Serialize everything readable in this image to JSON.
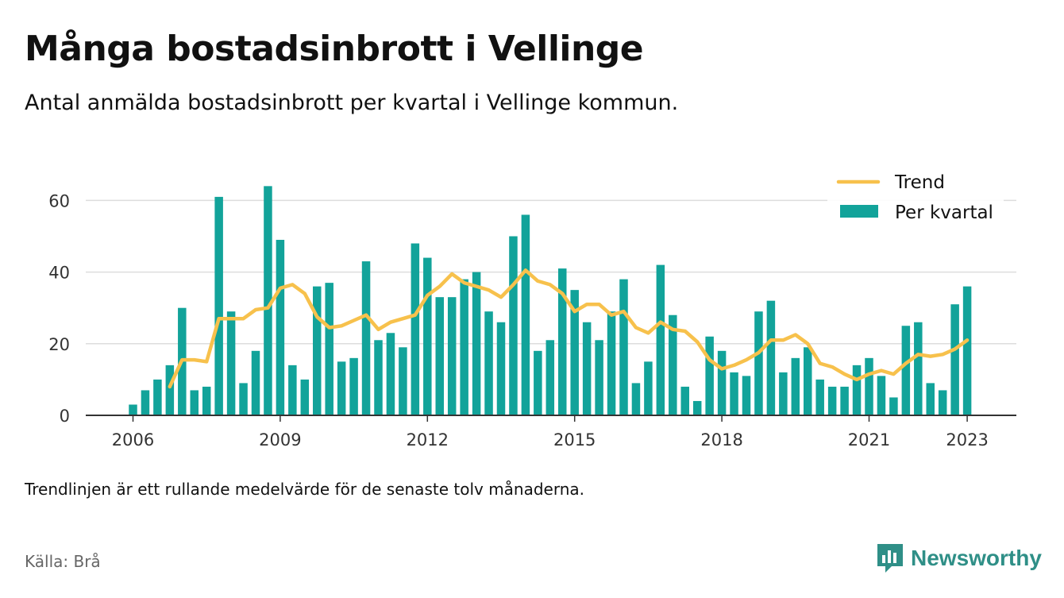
{
  "header": {
    "title": "Många bostadsinbrott i Vellinge",
    "subtitle": "Antal anmälda bostadsinbrott per kvartal i Vellinge kommun."
  },
  "footer": {
    "note": "Trendlinjen är ett rullande medelvärde för de senaste tolv månaderna.",
    "source": "Källa: Brå",
    "brand": "Newsworthy",
    "brand_icon": "bar-chart-logo-icon",
    "brand_color": "#2f8f87"
  },
  "chart_data": {
    "type": "bar",
    "ylim": [
      0,
      70
    ],
    "yticks": [
      "0",
      "20",
      "40",
      "60"
    ],
    "xticks": [
      "2006",
      "2009",
      "2012",
      "2015",
      "2018",
      "2021",
      "2023"
    ],
    "grid": true,
    "legend_position": "top-right",
    "x": [
      "2006-Q1",
      "2006-Q2",
      "2006-Q3",
      "2006-Q4",
      "2007-Q1",
      "2007-Q2",
      "2007-Q3",
      "2007-Q4",
      "2008-Q1",
      "2008-Q2",
      "2008-Q3",
      "2008-Q4",
      "2009-Q1",
      "2009-Q2",
      "2009-Q3",
      "2009-Q4",
      "2010-Q1",
      "2010-Q2",
      "2010-Q3",
      "2010-Q4",
      "2011-Q1",
      "2011-Q2",
      "2011-Q3",
      "2011-Q4",
      "2012-Q1",
      "2012-Q2",
      "2012-Q3",
      "2012-Q4",
      "2013-Q1",
      "2013-Q2",
      "2013-Q3",
      "2013-Q4",
      "2014-Q1",
      "2014-Q2",
      "2014-Q3",
      "2014-Q4",
      "2015-Q1",
      "2015-Q2",
      "2015-Q3",
      "2015-Q4",
      "2016-Q1",
      "2016-Q2",
      "2016-Q3",
      "2016-Q4",
      "2017-Q1",
      "2017-Q2",
      "2017-Q3",
      "2017-Q4",
      "2018-Q1",
      "2018-Q2",
      "2018-Q3",
      "2018-Q4",
      "2019-Q1",
      "2019-Q2",
      "2019-Q3",
      "2019-Q4",
      "2020-Q1",
      "2020-Q2",
      "2020-Q3",
      "2020-Q4",
      "2021-Q1",
      "2021-Q2",
      "2021-Q3",
      "2021-Q4",
      "2022-Q1",
      "2022-Q2",
      "2022-Q3",
      "2022-Q4",
      "2023-Q1"
    ],
    "series": [
      {
        "name": "Per kvartal",
        "kind": "bar",
        "color": "#12a39a",
        "values": [
          3,
          7,
          10,
          14,
          30,
          7,
          8,
          61,
          29,
          9,
          18,
          64,
          49,
          14,
          10,
          36,
          37,
          15,
          16,
          43,
          21,
          23,
          19,
          48,
          44,
          33,
          33,
          38,
          40,
          29,
          26,
          50,
          56,
          18,
          21,
          41,
          35,
          26,
          21,
          29,
          38,
          9,
          15,
          42,
          28,
          8,
          4,
          22,
          18,
          12,
          11,
          29,
          32,
          12,
          16,
          19,
          10,
          8,
          8,
          14,
          16,
          11,
          5,
          25,
          26,
          9,
          7,
          31,
          36
        ]
      },
      {
        "name": "Trend",
        "kind": "line",
        "color": "#f7c14c",
        "values": [
          null,
          null,
          null,
          8,
          15.5,
          15.5,
          15,
          27,
          27,
          27,
          29.5,
          30,
          35.5,
          36.5,
          34,
          27.5,
          24.5,
          25,
          26.5,
          28,
          24,
          26,
          27,
          28,
          33.5,
          36,
          39.5,
          37,
          36,
          35,
          33,
          36.5,
          40.5,
          37.5,
          36.5,
          34,
          29,
          31,
          31,
          28,
          29,
          24.5,
          23,
          26,
          24,
          23.5,
          20.5,
          15.5,
          13,
          14,
          15.5,
          17.5,
          21,
          21,
          22.5,
          20,
          14.5,
          13.5,
          11.5,
          10,
          11.5,
          12.5,
          11.5,
          14.5,
          17,
          16.5,
          17,
          18.5,
          21
        ]
      }
    ]
  }
}
